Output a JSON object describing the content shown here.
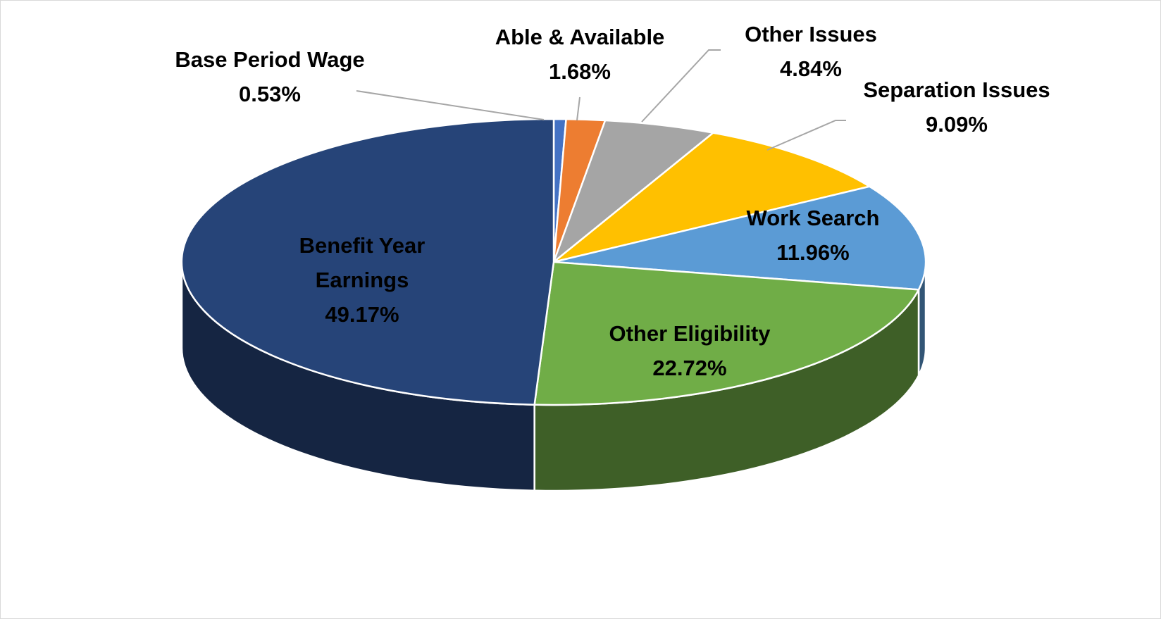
{
  "chart_data": {
    "type": "pie",
    "style": "3d",
    "title": "",
    "slices": [
      {
        "label": "Base Period Wage",
        "value": 0.53,
        "value_label": "0.53%",
        "color": "#4472c4"
      },
      {
        "label": "Able & Available",
        "value": 1.68,
        "value_label": "1.68%",
        "color": "#ed7d31"
      },
      {
        "label": "Other Issues",
        "value": 4.84,
        "value_label": "4.84%",
        "color": "#a5a5a5"
      },
      {
        "label": "Separation Issues",
        "value": 9.09,
        "value_label": "9.09%",
        "color": "#ffc000"
      },
      {
        "label": "Work Search",
        "value": 11.96,
        "value_label": "11.96%",
        "color": "#5b9bd5"
      },
      {
        "label": "Other Eligibility",
        "value": 22.72,
        "value_label": "22.72%",
        "color": "#70ad47"
      },
      {
        "label": "Benefit Year Earnings",
        "value": 49.17,
        "value_label": "49.17%",
        "color": "#264478"
      }
    ],
    "legend": "none",
    "data_labels": "category and percentage"
  }
}
